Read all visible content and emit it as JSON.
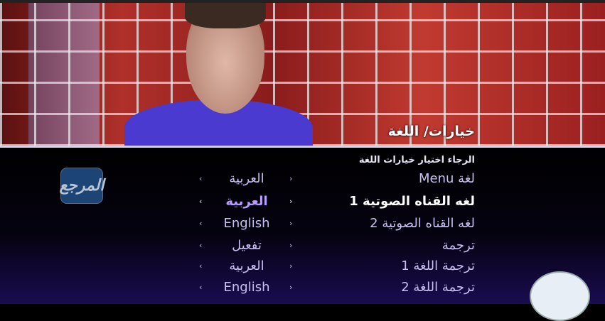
{
  "header": {
    "title": "خيارات/ اللغة"
  },
  "menu": {
    "subtitle": "الرجاء اختيار خيارات اللغة",
    "rows": [
      {
        "label": "لغة Menu",
        "value": "العربية",
        "selected": false
      },
      {
        "label": "لغه القناه الصوتية 1",
        "value": "العربية",
        "selected": true
      },
      {
        "label": "لغه القناه الصوتية 2",
        "value": "English",
        "selected": false
      },
      {
        "label": "ترجمة",
        "value": "تفعيل",
        "selected": false
      },
      {
        "label": "ترجمة اللغة 1",
        "value": "العربية",
        "selected": false
      },
      {
        "label": "ترجمة اللغة 2",
        "value": "English",
        "selected": false
      }
    ],
    "arrow_left": "‹",
    "arrow_right": "›"
  },
  "watermark": {
    "text": "المرجع"
  },
  "colors": {
    "selected_value": "#b89cff",
    "text": "#c8c0f0"
  }
}
